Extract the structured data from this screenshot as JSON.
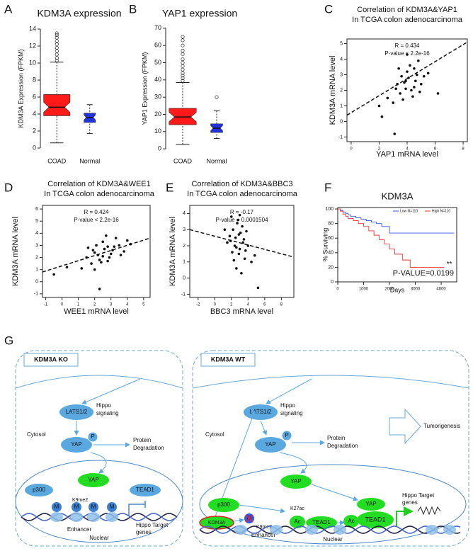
{
  "chart_data": [
    {
      "type": "box",
      "panel": "A",
      "title": "KDM3A expression",
      "ylabel": "KDM3A Expression (FPKM)",
      "categories": [
        "COAD",
        "Normal"
      ],
      "colors": [
        "#ff1a1a",
        "#2233dd"
      ],
      "boxes": [
        {
          "min": 0.6,
          "q1": 3.8,
          "median": 4.8,
          "q3": 6.3,
          "max": 10.1,
          "outliers": [
            10.3,
            10.6,
            11,
            11.4,
            11.8,
            12.2,
            12.6,
            13,
            13.3,
            13.5
          ]
        },
        {
          "min": 1.7,
          "q1": 3.0,
          "median": 3.6,
          "q3": 4.1,
          "max": 5.1,
          "outliers": []
        }
      ],
      "ylim": [
        -0.5,
        14.5
      ],
      "yticks": [
        0,
        2,
        4,
        6,
        8,
        10,
        12,
        14
      ]
    },
    {
      "type": "box",
      "panel": "B",
      "title": "YAP1 expression",
      "ylabel": "YAP1  Expression (FPKM)",
      "categories": [
        "COAD",
        "Normal"
      ],
      "colors": [
        "#ff1a1a",
        "#2233dd"
      ],
      "boxes": [
        {
          "min": 2.5,
          "q1": 14,
          "median": 18.5,
          "q3": 23.5,
          "max": 38.5,
          "outliers": [
            39.5,
            41,
            42.5,
            44,
            46,
            48,
            50,
            52,
            55,
            57,
            60,
            63,
            65
          ]
        },
        {
          "min": 6,
          "q1": 9.5,
          "median": 12,
          "q3": 14.5,
          "max": 22,
          "outliers": [
            30
          ]
        }
      ],
      "ylim": [
        -2,
        72
      ],
      "yticks": [
        0,
        10,
        20,
        30,
        40,
        50,
        60,
        70
      ]
    },
    {
      "type": "scatter",
      "panel": "C",
      "title": "Correlation of KDM3A&YAP1",
      "subtitle": "In TCGA colon adenocarcinoma",
      "xlabel": "YAP1 mRNA level",
      "ylabel": "KDM3A mRNA level",
      "annotations": [
        "R = 0.434",
        "P-value < 2.2e-16"
      ],
      "x": [
        3.2,
        3.8,
        4.1,
        4.5,
        3.5,
        4.0,
        4.3,
        3.9,
        4.7,
        5.0,
        3.0,
        2.6,
        4.2,
        4.8,
        3.6,
        4.4,
        3.3,
        5.2,
        4.6,
        3.7,
        2.2,
        2.0,
        5.5,
        4.9,
        3.4,
        4.0,
        6.2,
        3.1,
        4.5,
        3.9
      ],
      "values": [
        2.1,
        2.5,
        2.8,
        2.2,
        1.8,
        3.2,
        2.0,
        2.6,
        3.0,
        2.4,
        1.2,
        1.5,
        3.6,
        3.9,
        2.9,
        1.6,
        2.4,
        2.9,
        2.6,
        1.4,
        0.3,
        1.0,
        3.1,
        1.9,
        3.4,
        4.3,
        1.8,
        -0.8,
        3.4,
        2.1
      ],
      "fit": {
        "x": [
          -0.3,
          8.3
        ],
        "values": [
          0.4,
          5.1
        ]
      },
      "xlim": [
        -0.3,
        8.3
      ],
      "xticks": [
        0,
        2,
        4,
        6,
        8
      ],
      "ylim": [
        -1.3,
        5.3
      ],
      "yticks": [
        -1,
        0,
        1,
        2,
        3,
        4,
        5
      ]
    },
    {
      "type": "scatter",
      "panel": "D",
      "title": "Correlation of KDM3A&WEE1",
      "subtitle": "In TCGA colon adenocarcinoma",
      "xlabel": "WEE1 mRNA level",
      "ylabel": "KDM3A mRNA level",
      "annotations": [
        "R = 0.424",
        "P-value < 2.2e-16"
      ],
      "x": [
        1.5,
        2.0,
        2.3,
        2.8,
        3.1,
        2.5,
        1.8,
        3.5,
        2.2,
        2.9,
        3.3,
        1.2,
        2.6,
        3.8,
        2.0,
        2.7,
        3.0,
        1.6,
        4.2,
        2.4,
        0.3,
        3.6,
        2.1,
        2.8,
        3.2,
        1.9,
        2.5,
        -0.5,
        4.0,
        2.3
      ],
      "values": [
        2.0,
        2.4,
        1.8,
        2.9,
        2.6,
        3.3,
        1.5,
        3.0,
        2.2,
        2.0,
        3.6,
        1.1,
        2.7,
        2.5,
        1.0,
        3.8,
        2.3,
        2.8,
        3.1,
        1.6,
        1.2,
        2.2,
        3.0,
        1.7,
        2.9,
        2.6,
        2.1,
        0.6,
        3.4,
        -0.6
      ],
      "fit": {
        "x": [
          -1.2,
          5.4
        ],
        "values": [
          0.8,
          3.6
        ]
      },
      "xlim": [
        -1.2,
        5.4
      ],
      "xticks": [
        -1,
        0,
        1,
        2,
        3,
        4,
        5
      ],
      "ylim": [
        -1.3,
        6.3
      ],
      "yticks": [
        -1,
        0,
        1,
        2,
        3,
        4,
        5,
        6
      ]
    },
    {
      "type": "scatter",
      "panel": "E",
      "title": "Correlation of KDM3A&BBC3",
      "subtitle": "In TCGA colon adenocarcinoma",
      "xlabel": "BBC3 mRNA level",
      "ylabel": "KDM3A mRNA level",
      "annotations": [
        "R = -0.17",
        "P-value = 0.0001504"
      ],
      "x": [
        2.5,
        3.0,
        2.2,
        3.4,
        2.8,
        3.6,
        1.8,
        4.0,
        2.6,
        3.1,
        2.0,
        3.3,
        2.9,
        1.5,
        4.4,
        2.4,
        3.8,
        2.7,
        3.2,
        1.2,
        4.8,
        2.1,
        3.5,
        2.9,
        2.3,
        3.0,
        5.2,
        1.9,
        2.6,
        3.7
      ],
      "values": [
        2.5,
        1.8,
        3.0,
        2.2,
        3.6,
        1.2,
        2.6,
        2.0,
        0.6,
        2.8,
        3.8,
        3.2,
        1.5,
        2.2,
        1.0,
        2.0,
        2.9,
        3.4,
        0.3,
        3.0,
        1.4,
        1.6,
        2.4,
        2.7,
        1.1,
        3.9,
        -0.6,
        2.3,
        1.9,
        1.7
      ],
      "fit": {
        "x": [
          -3,
          9.5
        ],
        "values": [
          3.0,
          1.3
        ]
      },
      "xlim": [
        -3,
        9.5
      ],
      "xticks": [
        -2,
        0,
        2,
        4,
        6,
        8
      ],
      "ylim": [
        -1.2,
        4.5
      ],
      "yticks": [
        -1,
        0,
        1,
        2,
        3,
        4
      ]
    },
    {
      "type": "km",
      "panel": "F",
      "title": "KDM3A",
      "xlabel": "Days",
      "ylabel": "% Surviving",
      "annotations": [
        "**",
        "P-VALUE=0.0199"
      ],
      "series": [
        {
          "name": "Low N=110",
          "color": "#3355ee",
          "x": [
            0,
            100,
            200,
            300,
            400,
            500,
            700,
            900,
            1100,
            1300,
            1500,
            1700,
            2000,
            4500
          ],
          "values": [
            100,
            98,
            96,
            94,
            92,
            90,
            88,
            86,
            84,
            82,
            80,
            76,
            67,
            67
          ]
        },
        {
          "name": "High N=110",
          "color": "#ee3333",
          "x": [
            0,
            100,
            200,
            300,
            400,
            600,
            800,
            1000,
            1200,
            1400,
            1600,
            1800,
            2000,
            2200,
            2500,
            2800,
            4100
          ],
          "values": [
            100,
            97,
            93,
            90,
            87,
            84,
            80,
            76,
            70,
            64,
            58,
            52,
            45,
            38,
            30,
            20,
            20
          ]
        }
      ],
      "xlim": [
        0,
        4600
      ],
      "xticks": [
        0,
        1000,
        2000,
        3000,
        4000
      ],
      "ylim": [
        0,
        102
      ],
      "yticks": [
        0,
        20,
        40,
        60,
        80,
        100
      ]
    }
  ],
  "diagram": {
    "panel": "G",
    "left": {
      "title": "KDM3A KO",
      "lats": "LATS1/2",
      "hippo": [
        "Hippo",
        "signaling"
      ],
      "cytosol": "Cytosol",
      "yap_cyto": "YAP",
      "p": "P",
      "degradation": [
        "Protein",
        "Degradation"
      ],
      "yap_nuc": "YAP",
      "p300": "p300",
      "tead1": "TEAD1",
      "m": [
        "M",
        "M",
        "M",
        "M"
      ],
      "k9me2": "K9me2",
      "enhancer": "Enhancer",
      "target": [
        "Hippo Target",
        "genes"
      ],
      "nuclear": "Nuclear"
    },
    "right": {
      "title": "KDM3A WT",
      "lats": "LATS1/2",
      "hippo": [
        "Hippo",
        "signaling"
      ],
      "cytosol": "Cytosol",
      "yap_cyto": "YAP",
      "p": "P",
      "degradation": [
        "Protein",
        "Degradation"
      ],
      "tumorigenesis": "Tumorigenesis",
      "yap_nuc": "YAP",
      "p300": "p300",
      "kdm3a": "KDM3A",
      "m": "M",
      "k9me2": "K9me2",
      "k27ac": "K27ac",
      "ac": [
        "Ac",
        "Ac"
      ],
      "tead1": [
        "TEAD1",
        "TEAD1"
      ],
      "yap_complex": "YAP",
      "target": [
        "Hippo Target",
        "genes"
      ],
      "enhancer": "Enhancer",
      "nuclear": "Nuclear"
    }
  }
}
